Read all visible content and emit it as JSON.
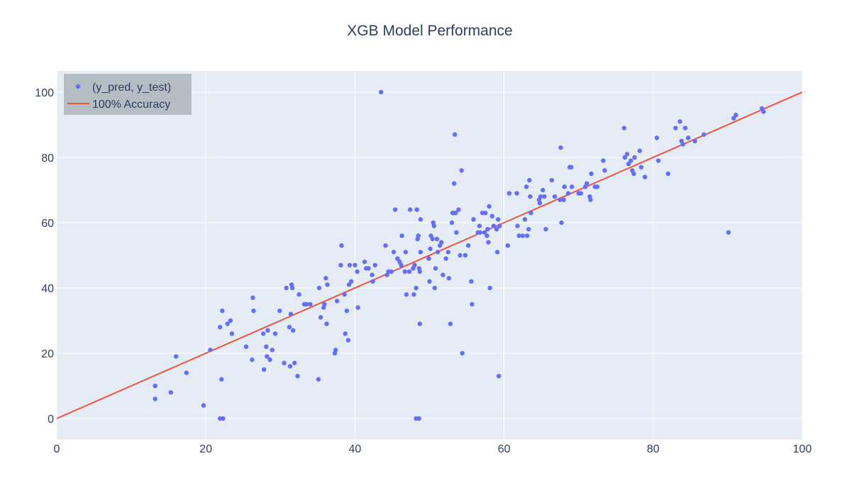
{
  "chart_data": {
    "type": "scatter",
    "title": "XGB Model Performance",
    "xlabel": "",
    "ylabel": "",
    "xlim": [
      0,
      100
    ],
    "ylim": [
      -6.5,
      106.5
    ],
    "x_ticks": [
      0,
      20,
      40,
      60,
      80,
      100
    ],
    "y_ticks": [
      0,
      20,
      40,
      60,
      80,
      100
    ],
    "grid": true,
    "legend_position": "top-left",
    "colors": {
      "plot_bg": "#E5ECF6",
      "grid": "#ffffff",
      "points": "#636EFA",
      "line": "#EF553B",
      "text": "#2A3F5F",
      "legend_bg": "#b5bdc4"
    },
    "series": [
      {
        "name": "(y_pred, y_test)",
        "mode": "markers",
        "points": [
          [
            13.2,
            10
          ],
          [
            13.2,
            6
          ],
          [
            15.3,
            8
          ],
          [
            16,
            19
          ],
          [
            17.4,
            14
          ],
          [
            19.7,
            4
          ],
          [
            20.6,
            21
          ],
          [
            21.9,
            28
          ],
          [
            22.2,
            33
          ],
          [
            22.1,
            12
          ],
          [
            21.9,
            0
          ],
          [
            22.3,
            0
          ],
          [
            22.9,
            29
          ],
          [
            23.3,
            30
          ],
          [
            23.5,
            26
          ],
          [
            25.4,
            22
          ],
          [
            26.2,
            18
          ],
          [
            26.3,
            37
          ],
          [
            26.4,
            33
          ],
          [
            27.7,
            26
          ],
          [
            27.8,
            15
          ],
          [
            28.1,
            22
          ],
          [
            28.2,
            19
          ],
          [
            28.3,
            27
          ],
          [
            28.6,
            18
          ],
          [
            28.9,
            21
          ],
          [
            29.3,
            26
          ],
          [
            29.9,
            33
          ],
          [
            30.5,
            17
          ],
          [
            30.8,
            40
          ],
          [
            31.2,
            28
          ],
          [
            31.3,
            16
          ],
          [
            31.4,
            32
          ],
          [
            31.5,
            41
          ],
          [
            31.6,
            40
          ],
          [
            31.7,
            27
          ],
          [
            31.9,
            17
          ],
          [
            32.3,
            13
          ],
          [
            32.5,
            38
          ],
          [
            33.2,
            35
          ],
          [
            33.5,
            35
          ],
          [
            34,
            35
          ],
          [
            35.1,
            12
          ],
          [
            35.2,
            40
          ],
          [
            35.4,
            31
          ],
          [
            35.8,
            34
          ],
          [
            35.9,
            35
          ],
          [
            36.1,
            43
          ],
          [
            36.2,
            29
          ],
          [
            36.3,
            41
          ],
          [
            37.3,
            20
          ],
          [
            37.4,
            21
          ],
          [
            37.6,
            36
          ],
          [
            38.1,
            47
          ],
          [
            38.2,
            53
          ],
          [
            38.6,
            38
          ],
          [
            38.7,
            26
          ],
          [
            38.9,
            33
          ],
          [
            39.1,
            24
          ],
          [
            39.2,
            41
          ],
          [
            39.3,
            47
          ],
          [
            39.5,
            42
          ],
          [
            40,
            47
          ],
          [
            40.3,
            45
          ],
          [
            40.4,
            34
          ],
          [
            41.5,
            46
          ],
          [
            41.3,
            48
          ],
          [
            41.8,
            46
          ],
          [
            42.3,
            44
          ],
          [
            42.4,
            42
          ],
          [
            42.7,
            47
          ],
          [
            43.5,
            100
          ],
          [
            44.1,
            53
          ],
          [
            44.3,
            44
          ],
          [
            44.5,
            45
          ],
          [
            44.9,
            45
          ],
          [
            45.2,
            51
          ],
          [
            45.4,
            64
          ],
          [
            45.7,
            49
          ],
          [
            46,
            48
          ],
          [
            46.2,
            47
          ],
          [
            46.3,
            56
          ],
          [
            46.7,
            45
          ],
          [
            46.8,
            51
          ],
          [
            46.9,
            38
          ],
          [
            47.3,
            45
          ],
          [
            47.4,
            64
          ],
          [
            47.8,
            46
          ],
          [
            47.9,
            38
          ],
          [
            48,
            47
          ],
          [
            48.2,
            40
          ],
          [
            48.3,
            64
          ],
          [
            48.4,
            55
          ],
          [
            48.5,
            56
          ],
          [
            48.6,
            46
          ],
          [
            48.7,
            45
          ],
          [
            48.8,
            51
          ],
          [
            48.2,
            0
          ],
          [
            48.6,
            0
          ],
          [
            48.7,
            29
          ],
          [
            48.8,
            61
          ],
          [
            49.9,
            49
          ],
          [
            50,
            42
          ],
          [
            50.1,
            52
          ],
          [
            50.2,
            56
          ],
          [
            50.4,
            55
          ],
          [
            50.5,
            60
          ],
          [
            50.6,
            59
          ],
          [
            50.7,
            40
          ],
          [
            50.8,
            46
          ],
          [
            51,
            55
          ],
          [
            51.1,
            51
          ],
          [
            51.4,
            53
          ],
          [
            51.6,
            54
          ],
          [
            51.8,
            44
          ],
          [
            52.2,
            49
          ],
          [
            52.5,
            51
          ],
          [
            52.6,
            43
          ],
          [
            52.8,
            29
          ],
          [
            53,
            60
          ],
          [
            53.1,
            63
          ],
          [
            53.2,
            63
          ],
          [
            53.3,
            72
          ],
          [
            53.4,
            87
          ],
          [
            53.5,
            63
          ],
          [
            53.6,
            57
          ],
          [
            53.9,
            64
          ],
          [
            54.1,
            50
          ],
          [
            54.3,
            76
          ],
          [
            54.4,
            20
          ],
          [
            54.8,
            50
          ],
          [
            55.2,
            53
          ],
          [
            55.6,
            42
          ],
          [
            55.7,
            35
          ],
          [
            55.9,
            61
          ],
          [
            56.5,
            57
          ],
          [
            56.7,
            59
          ],
          [
            56.8,
            57
          ],
          [
            57.1,
            63
          ],
          [
            57.4,
            57
          ],
          [
            57.5,
            63
          ],
          [
            57.7,
            56
          ],
          [
            57.8,
            58
          ],
          [
            57.9,
            54
          ],
          [
            58,
            65
          ],
          [
            58.1,
            40
          ],
          [
            58.4,
            62
          ],
          [
            58.6,
            59
          ],
          [
            59,
            58
          ],
          [
            59.2,
            61
          ],
          [
            59.1,
            51
          ],
          [
            59.3,
            13
          ],
          [
            59.4,
            59
          ],
          [
            60.5,
            53
          ],
          [
            60.7,
            69
          ],
          [
            61.7,
            69
          ],
          [
            61.8,
            59
          ],
          [
            62,
            56
          ],
          [
            62.5,
            56
          ],
          [
            62.8,
            61
          ],
          [
            63,
            71
          ],
          [
            63.1,
            56
          ],
          [
            63.3,
            58
          ],
          [
            63.4,
            73
          ],
          [
            63.5,
            68
          ],
          [
            63.6,
            63
          ],
          [
            64.7,
            67
          ],
          [
            64.8,
            66
          ],
          [
            64.9,
            68
          ],
          [
            65.2,
            70
          ],
          [
            65.4,
            68
          ],
          [
            65.6,
            58
          ],
          [
            66.4,
            73
          ],
          [
            66.8,
            68
          ],
          [
            67.5,
            67
          ],
          [
            67.6,
            83
          ],
          [
            67.7,
            60
          ],
          [
            68,
            67
          ],
          [
            68.1,
            71
          ],
          [
            68.6,
            69
          ],
          [
            68.8,
            77
          ],
          [
            69,
            77
          ],
          [
            69.1,
            71
          ],
          [
            70,
            69
          ],
          [
            70.3,
            69
          ],
          [
            70.9,
            71
          ],
          [
            71.1,
            72
          ],
          [
            71.5,
            68
          ],
          [
            71.6,
            67
          ],
          [
            71.7,
            75
          ],
          [
            72.2,
            71
          ],
          [
            72.5,
            71
          ],
          [
            73.3,
            79
          ],
          [
            73.5,
            76
          ],
          [
            76.1,
            89
          ],
          [
            76.2,
            80
          ],
          [
            76.5,
            81
          ],
          [
            76.7,
            78
          ],
          [
            77,
            79
          ],
          [
            77.2,
            76
          ],
          [
            77.4,
            75
          ],
          [
            77.5,
            80
          ],
          [
            78.2,
            82
          ],
          [
            78.4,
            77
          ],
          [
            78.9,
            74
          ],
          [
            80.5,
            86
          ],
          [
            80.7,
            79
          ],
          [
            82,
            75
          ],
          [
            83,
            89
          ],
          [
            83.6,
            91
          ],
          [
            83.8,
            85
          ],
          [
            84,
            84
          ],
          [
            84.3,
            89
          ],
          [
            84.7,
            86
          ],
          [
            85.6,
            85
          ],
          [
            86.8,
            87
          ],
          [
            90.1,
            57
          ],
          [
            90.8,
            92
          ],
          [
            91.1,
            93
          ],
          [
            94.6,
            95
          ],
          [
            94.8,
            94
          ]
        ]
      },
      {
        "name": "100% Accuracy",
        "mode": "lines",
        "points": [
          [
            0,
            0
          ],
          [
            100,
            100
          ]
        ]
      }
    ]
  }
}
